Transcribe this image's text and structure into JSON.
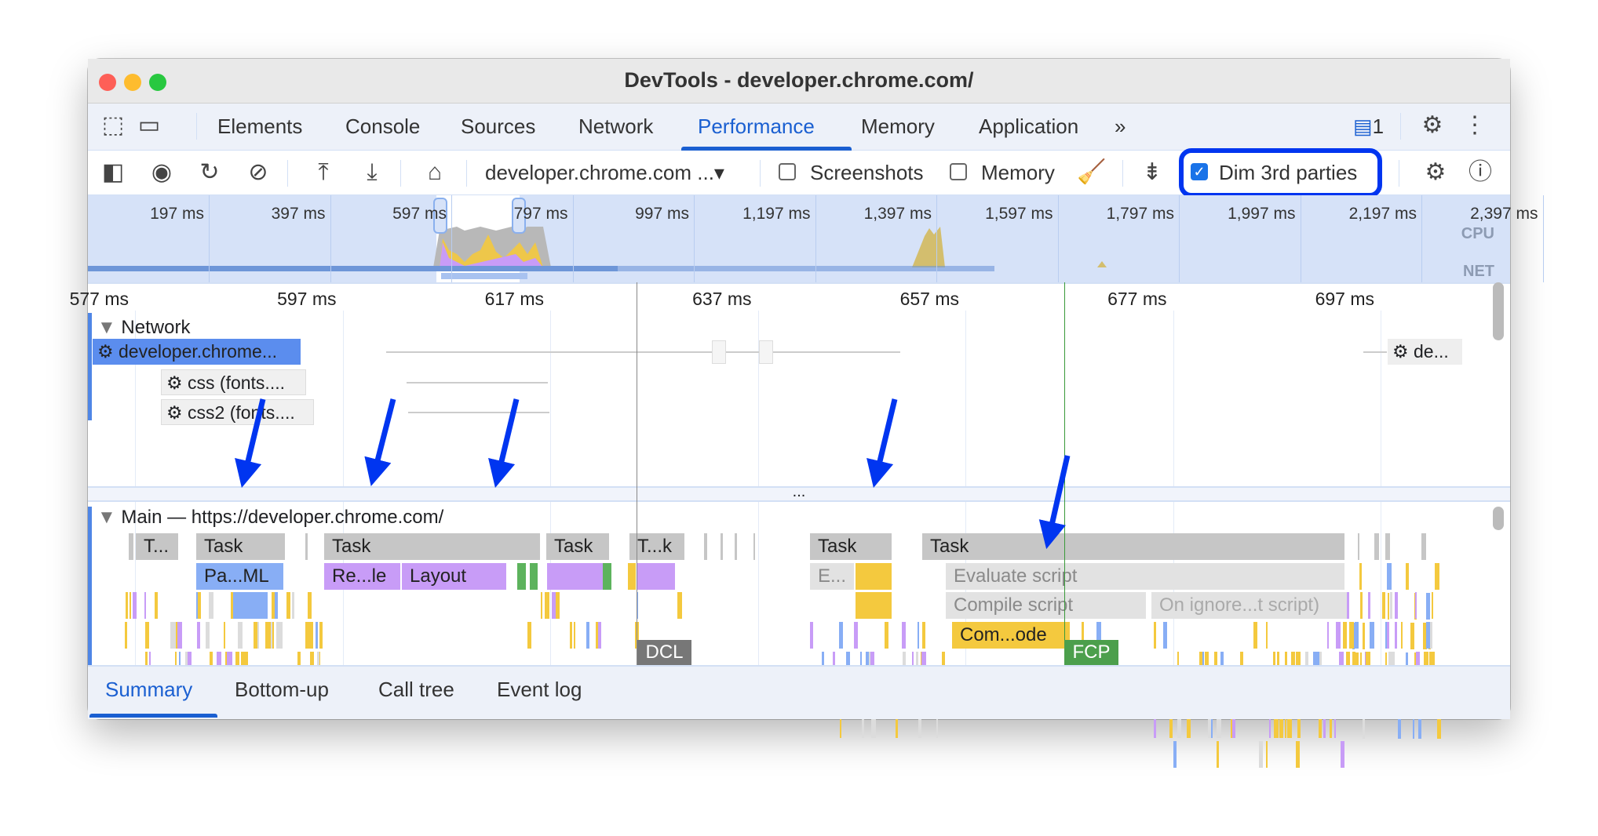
{
  "window": {
    "title": "DevTools - developer.chrome.com/"
  },
  "tabs": {
    "items": [
      "Elements",
      "Console",
      "Sources",
      "Network",
      "Performance",
      "Memory",
      "Application"
    ],
    "active": "Performance",
    "more_icon": "chevron-double-right-icon",
    "issues_count": "1"
  },
  "toolbar": {
    "recording_select": "developer.chrome.com ...",
    "screenshots_label": "Screenshots",
    "screenshots_checked": false,
    "memory_label": "Memory",
    "memory_checked": false,
    "dim_label": "Dim 3rd parties",
    "dim_checked": true,
    "highlight_color": "#0035f0"
  },
  "overview": {
    "ticks": [
      "197 ms",
      "397 ms",
      "597 ms",
      "797 ms",
      "997 ms",
      "1,197 ms",
      "1,397 ms",
      "1,597 ms",
      "1,797 ms",
      "1,997 ms",
      "2,197 ms",
      "2,397 ms"
    ],
    "cpu_label": "CPU",
    "net_label": "NET"
  },
  "ruler": {
    "ticks": [
      "577 ms",
      "597 ms",
      "617 ms",
      "637 ms",
      "657 ms",
      "677 ms",
      "697 ms"
    ]
  },
  "network": {
    "header": "Network",
    "requests": [
      "developer.chrome...",
      "css (fonts....",
      "css2 (fonts....",
      "de..."
    ],
    "more": "..."
  },
  "main": {
    "header": "Main — https://developer.chrome.com/",
    "tasks": [
      "T...",
      "Task",
      "Task",
      "Task",
      "T...k",
      "Task",
      "Task"
    ],
    "events": {
      "parse_html": "Pa...ML",
      "recalc_style": "Re...le",
      "layout": "Layout",
      "evaluate_short": "E...",
      "evaluate_script": "Evaluate script",
      "compile_script": "Compile script",
      "on_ignore": "On ignore...t script)",
      "compile_code": "Com...ode"
    },
    "markers": {
      "dcl": "DCL",
      "fcp": "FCP"
    }
  },
  "bottom_tabs": {
    "items": [
      "Summary",
      "Bottom-up",
      "Call tree",
      "Event log"
    ],
    "active": "Summary"
  },
  "colors": {
    "accent": "#1a5fd1",
    "scripting": "#f4c93e",
    "rendering": "#c89cf7",
    "loading": "#88aef5",
    "painting": "#5db35d",
    "annotation": "#0035f0"
  }
}
